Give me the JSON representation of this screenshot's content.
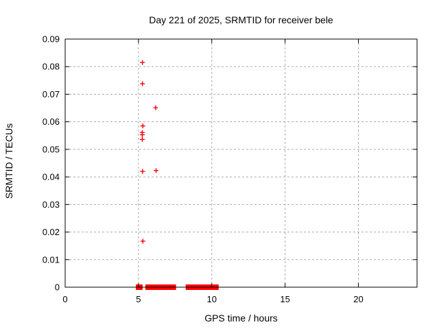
{
  "page": {
    "background": "#ffffff"
  },
  "chart_data": {
    "type": "scatter",
    "title": "Day 221 of 2025, SRMTID for receiver bele",
    "xlabel": "GPS time / hours",
    "ylabel": "SRMTID / TECUs",
    "xlim": [
      0,
      24
    ],
    "ylim": [
      0,
      0.09
    ],
    "xticks": [
      0,
      5,
      10,
      15,
      20
    ],
    "xtick_labels": [
      "0",
      "5",
      "10",
      "15",
      "20"
    ],
    "yticks": [
      0,
      0.01,
      0.02,
      0.03,
      0.04,
      0.05,
      0.06,
      0.07,
      0.08,
      0.09
    ],
    "ytick_labels": [
      "0",
      "0.01",
      "0.02",
      "0.03",
      "0.04",
      "0.05",
      "0.06",
      "0.07",
      "0.08",
      "0.09"
    ],
    "grid": true,
    "legend": "none",
    "marker": "plus",
    "marker_color": "#ff0000",
    "grid_color": "#a9a9a9",
    "border_color": "#000000",
    "points": [
      {
        "x": 5.27,
        "y": 0.0815
      },
      {
        "x": 5.27,
        "y": 0.0738
      },
      {
        "x": 6.17,
        "y": 0.0651
      },
      {
        "x": 5.3,
        "y": 0.0585
      },
      {
        "x": 5.26,
        "y": 0.0561
      },
      {
        "x": 5.26,
        "y": 0.0553
      },
      {
        "x": 5.26,
        "y": 0.0536
      },
      {
        "x": 5.28,
        "y": 0.042
      },
      {
        "x": 6.2,
        "y": 0.0423
      },
      {
        "x": 5.3,
        "y": 0.0167
      }
    ],
    "zero_value_runs": [
      {
        "x_start": 4.82,
        "x_end": 5.28,
        "y": 0
      },
      {
        "x_start": 5.47,
        "x_end": 7.56,
        "y": 0
      },
      {
        "x_start": 8.22,
        "x_end": 10.47,
        "y": 0
      }
    ]
  }
}
